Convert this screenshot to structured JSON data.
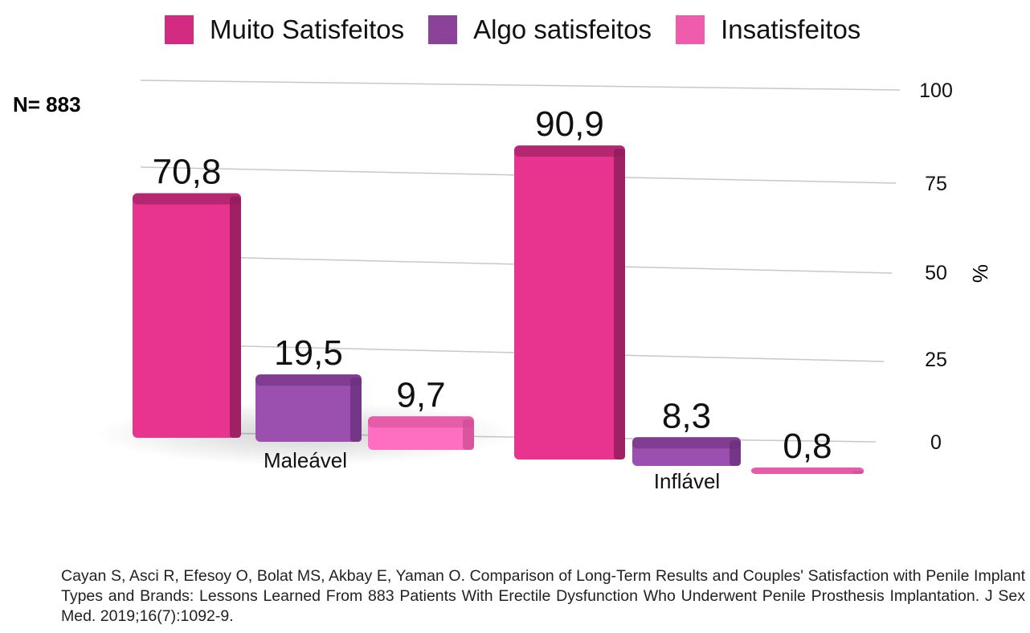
{
  "chart_data": {
    "type": "bar",
    "categories": [
      "Maleável",
      "Inflável"
    ],
    "series": [
      {
        "name": "Muito Satisfeitos",
        "values": [
          70.8,
          90.9
        ],
        "color": "#e8348e"
      },
      {
        "name": "Algo satisfeitos",
        "values": [
          19.5,
          8.3
        ],
        "color": "#9b4fae"
      },
      {
        "name": "Insatisfeitos",
        "values": [
          9.7,
          0.8
        ],
        "color": "#ff6ec0"
      }
    ],
    "data_labels": [
      [
        "70,8",
        "90,9"
      ],
      [
        "19,5",
        "8,3"
      ],
      [
        "9,7",
        "0,8"
      ]
    ],
    "ylabel": "%",
    "yticks": [
      "0",
      "25",
      "50",
      "75",
      "100"
    ],
    "ylim": [
      0,
      100
    ],
    "grid": true,
    "legend": "top",
    "annotation": "N= 883"
  },
  "citation": {
    "authors": [
      "Cayan",
      "Asci",
      "Efesoy",
      "Bolat",
      "Akbay"
    ],
    "text": "Cayan S, Asci R, Efesoy O, Bolat MS, Akbay E, Yaman O. Comparison of Long-Term Results and Couples' Satisfaction with Penile Implant Types and Brands: Lessons Learned From 883 Patients With Erectile Dysfunction Who Underwent Penile Prosthesis Implantation. J Sex Med. 2019;16(7):1092-9."
  }
}
